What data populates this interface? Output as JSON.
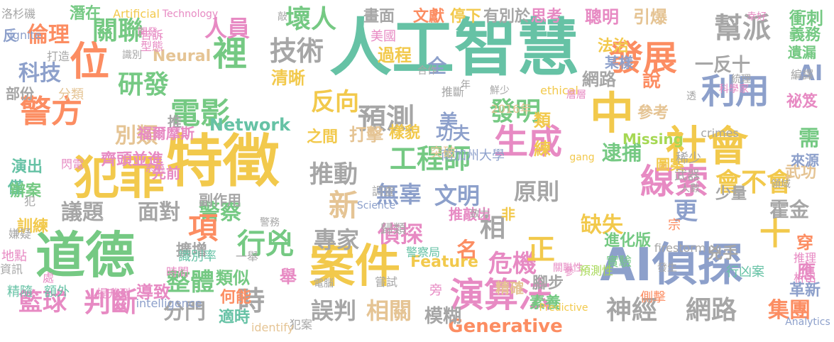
{
  "palette": {
    "yellow": "#f2c94c",
    "green": "#75c983",
    "teal": "#66c2a5",
    "blue": "#8da0cb",
    "orange": "#fc8d62",
    "pink": "#e78ac3",
    "gray": "#a6a6a6",
    "tan": "#e5c494",
    "lime": "#a6d854"
  },
  "words": [
    {
      "text": "人工智慧",
      "color": "teal"
    },
    {
      "text": "特徵",
      "color": "yellow"
    },
    {
      "text": "犯罪",
      "color": "yellow"
    },
    {
      "text": "道德",
      "color": "green"
    },
    {
      "text": "AI偵探",
      "color": "blue"
    },
    {
      "text": "案件",
      "color": "yellow"
    },
    {
      "text": "演算法",
      "color": "pink"
    },
    {
      "text": "社會",
      "color": "yellow"
    },
    {
      "text": "線索",
      "color": "pink"
    },
    {
      "text": "利用",
      "color": "blue"
    },
    {
      "text": "中",
      "color": "yellow"
    },
    {
      "text": "幫派",
      "color": "gray"
    },
    {
      "text": "發展",
      "color": "orange"
    },
    {
      "text": "位",
      "color": "orange"
    },
    {
      "text": "警方",
      "color": "orange"
    },
    {
      "text": "技術",
      "color": "gray"
    },
    {
      "text": "裡",
      "color": "green"
    },
    {
      "text": "電影",
      "color": "green"
    },
    {
      "text": "研發",
      "color": "green"
    },
    {
      "text": "關聯",
      "color": "green"
    },
    {
      "text": "生成",
      "color": "pink"
    },
    {
      "text": "工程師",
      "color": "green"
    },
    {
      "text": "預測",
      "color": "gray"
    },
    {
      "text": "發明",
      "color": "green"
    },
    {
      "text": "反向",
      "color": "yellow"
    },
    {
      "text": "推動",
      "color": "gray"
    },
    {
      "text": "新",
      "color": "tan"
    },
    {
      "text": "文明",
      "color": "blue"
    },
    {
      "text": "無辜",
      "color": "blue"
    },
    {
      "text": "原則",
      "color": "gray"
    },
    {
      "text": "會不會",
      "color": "yellow"
    },
    {
      "text": "逮捕",
      "color": "green"
    },
    {
      "text": "需",
      "color": "green"
    },
    {
      "text": "神經",
      "color": "gray"
    },
    {
      "text": "網路",
      "color": "gray"
    },
    {
      "text": "集團",
      "color": "orange"
    },
    {
      "text": "時",
      "color": "gray"
    },
    {
      "text": "行兇",
      "color": "green"
    },
    {
      "text": "警察",
      "color": "green"
    },
    {
      "text": "專家",
      "color": "gray"
    },
    {
      "text": "偵探",
      "color": "pink"
    },
    {
      "text": "危機",
      "color": "pink"
    },
    {
      "text": "名",
      "color": "orange"
    },
    {
      "text": "正",
      "color": "yellow"
    },
    {
      "text": "十",
      "color": "yellow"
    },
    {
      "text": "穿",
      "color": "orange"
    },
    {
      "text": "項",
      "color": "orange"
    },
    {
      "text": "整體",
      "color": "green"
    },
    {
      "text": "判斷",
      "color": "pink"
    },
    {
      "text": "籃球",
      "color": "pink"
    },
    {
      "text": "誤判",
      "color": "gray"
    },
    {
      "text": "相關",
      "color": "tan"
    },
    {
      "text": "Generative",
      "color": "orange"
    },
    {
      "text": "壞人",
      "color": "green"
    },
    {
      "text": "人員",
      "color": "pink"
    },
    {
      "text": "倫理",
      "color": "orange"
    },
    {
      "text": "科技",
      "color": "blue"
    },
    {
      "text": "別類",
      "color": "tan"
    },
    {
      "text": "議題",
      "color": "gray"
    },
    {
      "text": "面對",
      "color": "gray"
    },
    {
      "text": "分門",
      "color": "gray"
    },
    {
      "text": "模糊",
      "color": "gray"
    },
    {
      "text": "畫面",
      "color": "gray"
    },
    {
      "text": "文獻",
      "color": "orange"
    },
    {
      "text": "停下",
      "color": "yellow"
    },
    {
      "text": "有別於",
      "color": "gray"
    },
    {
      "text": "思考",
      "color": "pink"
    },
    {
      "text": "聰明",
      "color": "pink"
    },
    {
      "text": "引爆",
      "color": "tan"
    },
    {
      "text": "衝刺",
      "color": "green"
    },
    {
      "text": "義務",
      "color": "green"
    },
    {
      "text": "遺漏",
      "color": "green"
    },
    {
      "text": "AI",
      "color": "blue"
    },
    {
      "text": "祕笈",
      "color": "pink"
    },
    {
      "text": "一反十",
      "color": "gray"
    },
    {
      "text": "網路",
      "color": "gray"
    },
    {
      "text": "說",
      "color": "orange"
    },
    {
      "text": "參考",
      "color": "tan"
    },
    {
      "text": "打擊",
      "color": "tan"
    },
    {
      "text": "樣貌",
      "color": "yellow"
    },
    {
      "text": "美",
      "color": "blue"
    },
    {
      "text": "類",
      "color": "yellow"
    },
    {
      "text": "功夫",
      "color": "blue"
    },
    {
      "text": "練",
      "color": "yellow"
    },
    {
      "text": "Network",
      "color": "teal"
    },
    {
      "text": "之間",
      "color": "yellow"
    },
    {
      "text": "全",
      "color": "blue"
    },
    {
      "text": "過程",
      "color": "yellow"
    },
    {
      "text": "Neural",
      "color": "tan"
    },
    {
      "text": "清晰",
      "color": "yellow"
    },
    {
      "text": "相",
      "color": "gray"
    },
    {
      "text": "推敲出",
      "color": "pink"
    },
    {
      "text": "非",
      "color": "yellow"
    },
    {
      "text": "更",
      "color": "blue"
    },
    {
      "text": "少量",
      "color": "gray"
    },
    {
      "text": "霍金",
      "color": "gray"
    },
    {
      "text": "缺失",
      "color": "yellow"
    },
    {
      "text": "圖案",
      "color": "yellow"
    },
    {
      "text": "武功",
      "color": "tan"
    },
    {
      "text": "應",
      "color": "pink"
    },
    {
      "text": "革新",
      "color": "blue"
    },
    {
      "text": "腳步",
      "color": "gray"
    },
    {
      "text": "舉",
      "color": "pink"
    },
    {
      "text": "類似",
      "color": "green"
    },
    {
      "text": "擴增",
      "color": "gray"
    },
    {
      "text": "導致",
      "color": "pink"
    },
    {
      "text": "何能",
      "color": "orange"
    },
    {
      "text": "適時",
      "color": "teal"
    },
    {
      "text": "素養",
      "color": "green"
    },
    {
      "text": "精確",
      "color": "tan"
    },
    {
      "text": "Feature",
      "color": "yellow"
    },
    {
      "text": "進化版",
      "color": "green"
    },
    {
      "text": "兇手",
      "color": "gray"
    },
    {
      "text": "宗",
      "color": "orange"
    },
    {
      "text": "副作用",
      "color": "gray"
    },
    {
      "text": "先前",
      "color": "pink"
    },
    {
      "text": "訓練",
      "color": "yellow"
    },
    {
      "text": "僅",
      "color": "teal"
    },
    {
      "text": "辦案",
      "color": "green"
    },
    {
      "text": "演出",
      "color": "teal"
    },
    {
      "text": "齊頭並進",
      "color": "pink"
    },
    {
      "text": "推",
      "color": "gray"
    },
    {
      "text": "部份",
      "color": "gray"
    },
    {
      "text": "分類",
      "color": "tan"
    },
    {
      "text": "精隨",
      "color": "teal"
    },
    {
      "text": "額外",
      "color": "teal"
    },
    {
      "text": "地點",
      "color": "pink"
    },
    {
      "text": "嫌疑",
      "color": "gray"
    },
    {
      "text": "資訊",
      "color": "gray"
    },
    {
      "text": "Missing",
      "color": "lime"
    },
    {
      "text": "來源",
      "color": "blue"
    },
    {
      "text": "稀少",
      "color": "gray"
    },
    {
      "text": "武器",
      "color": "gray"
    },
    {
      "text": "某樣",
      "color": "blue"
    },
    {
      "text": "法治",
      "color": "yellow"
    },
    {
      "text": "美國",
      "color": "pink"
    },
    {
      "text": "南加州大學",
      "color": "blue"
    },
    {
      "text": "突破",
      "color": "tan"
    },
    {
      "text": "2016年",
      "color": "tan"
    },
    {
      "text": "推斷",
      "color": "gray"
    },
    {
      "text": "識別率",
      "color": "teal"
    },
    {
      "text": "提升到",
      "color": "pink"
    },
    {
      "text": "intelligence",
      "color": "blue"
    },
    {
      "text": "行凶案",
      "color": "teal"
    },
    {
      "text": "實驗",
      "color": "green"
    },
    {
      "text": "側擊",
      "color": "orange"
    },
    {
      "text": "推理",
      "color": "pink"
    },
    {
      "text": "析出",
      "color": "pink"
    },
    {
      "text": "firestorm",
      "color": "gray"
    },
    {
      "text": "警察局",
      "color": "teal"
    },
    {
      "text": "歸類",
      "color": "gray"
    },
    {
      "text": "調查",
      "color": "gray"
    },
    {
      "text": "Science",
      "color": "blue"
    },
    {
      "text": "Artificial",
      "color": "yellow"
    },
    {
      "text": "Technology",
      "color": "pink"
    },
    {
      "text": "洛杉磯",
      "color": "gray"
    },
    {
      "text": "潛在",
      "color": "green"
    },
    {
      "text": "反",
      "color": "blue"
    },
    {
      "text": "ignite",
      "color": "blue"
    },
    {
      "text": "打造",
      "color": "gray"
    },
    {
      "text": "告訴",
      "color": "pink"
    },
    {
      "text": "型態",
      "color": "pink"
    },
    {
      "text": "敲",
      "color": "gray"
    },
    {
      "text": "ethical",
      "color": "yellow"
    },
    {
      "text": "crimes",
      "color": "gray"
    },
    {
      "text": "gang",
      "color": "yellow"
    },
    {
      "text": "層層",
      "color": "pink"
    },
    {
      "text": "鮮少",
      "color": "gray"
    },
    {
      "text": "合作",
      "color": "gray"
    },
    {
      "text": "幸好",
      "color": "pink"
    },
    {
      "text": "科學家",
      "color": "pink"
    },
    {
      "text": "編譯",
      "color": "gray"
    },
    {
      "text": "統理",
      "color": "gray"
    },
    {
      "text": "人數",
      "color": "gray"
    },
    {
      "text": "領域",
      "color": "gray"
    },
    {
      "text": "發生",
      "color": "gray"
    },
    {
      "text": "關聯性",
      "color": "pink"
    },
    {
      "text": "預測性",
      "color": "lime"
    },
    {
      "text": "Analytics",
      "color": "blue"
    },
    {
      "text": "Predictive",
      "color": "yellow"
    },
    {
      "text": "識別",
      "color": "gray"
    },
    {
      "text": "開發",
      "color": "pink"
    },
    {
      "text": "福爾摩斯",
      "color": "pink"
    },
    {
      "text": "閃電",
      "color": "pink"
    },
    {
      "text": "犯",
      "color": "gray"
    },
    {
      "text": "系統",
      "color": "pink"
    },
    {
      "text": "時間",
      "color": "pink"
    },
    {
      "text": "處",
      "color": "pink"
    },
    {
      "text": "犯案",
      "color": "gray"
    },
    {
      "text": "identify",
      "color": "tan"
    },
    {
      "text": "旁",
      "color": "pink"
    },
    {
      "text": "電腦",
      "color": "gray"
    },
    {
      "text": "嘗試",
      "color": "gray"
    },
    {
      "text": "一舉",
      "color": "gray"
    },
    {
      "text": "警務",
      "color": "gray"
    },
    {
      "text": "致力",
      "color": "gray"
    },
    {
      "text": "年",
      "color": "gray"
    },
    {
      "text": "參",
      "color": "pink"
    },
    {
      "text": "透",
      "color": "gray"
    }
  ]
}
